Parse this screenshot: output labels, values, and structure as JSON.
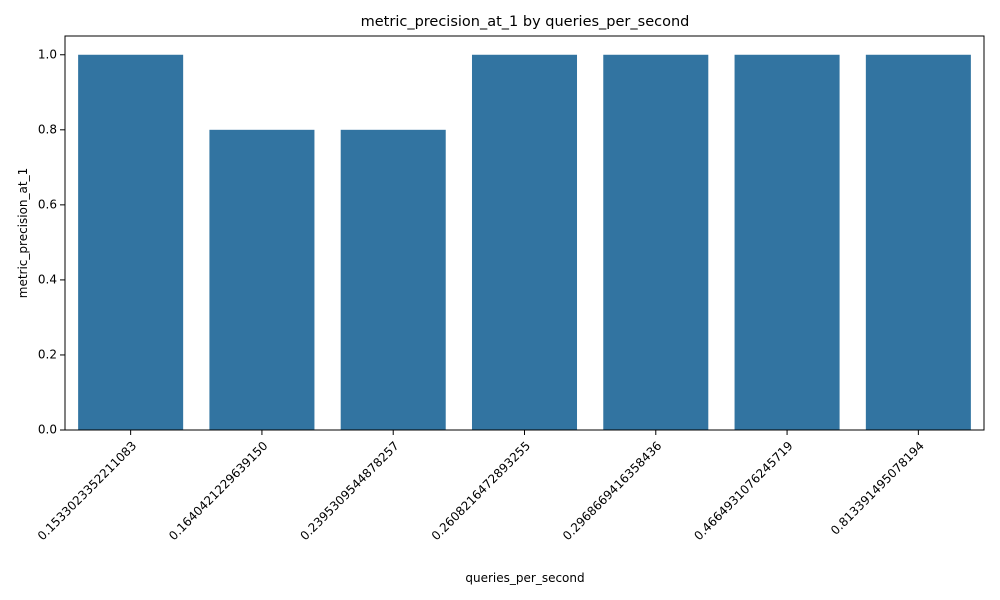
{
  "chart_data": {
    "type": "bar",
    "title": "metric_precision_at_1 by queries_per_second",
    "xlabel": "queries_per_second",
    "ylabel": "metric_precision_at_1",
    "categories": [
      "0.153302335221108З",
      "0.1640421229639150",
      "0.2395309544878257",
      "0.2608216472893255",
      "0.2968669416358436",
      "0.4664931076245719",
      "0.813391495078194"
    ],
    "values": [
      1.0,
      0.8,
      0.8,
      1.0,
      1.0,
      1.0,
      1.0
    ],
    "ylim": [
      0,
      1.05
    ],
    "yticks": [
      "0.0",
      "0.2",
      "0.4",
      "0.6",
      "0.8",
      "1.0"
    ],
    "bar_color": "#3274a1",
    "grid": false,
    "legend": "none"
  }
}
